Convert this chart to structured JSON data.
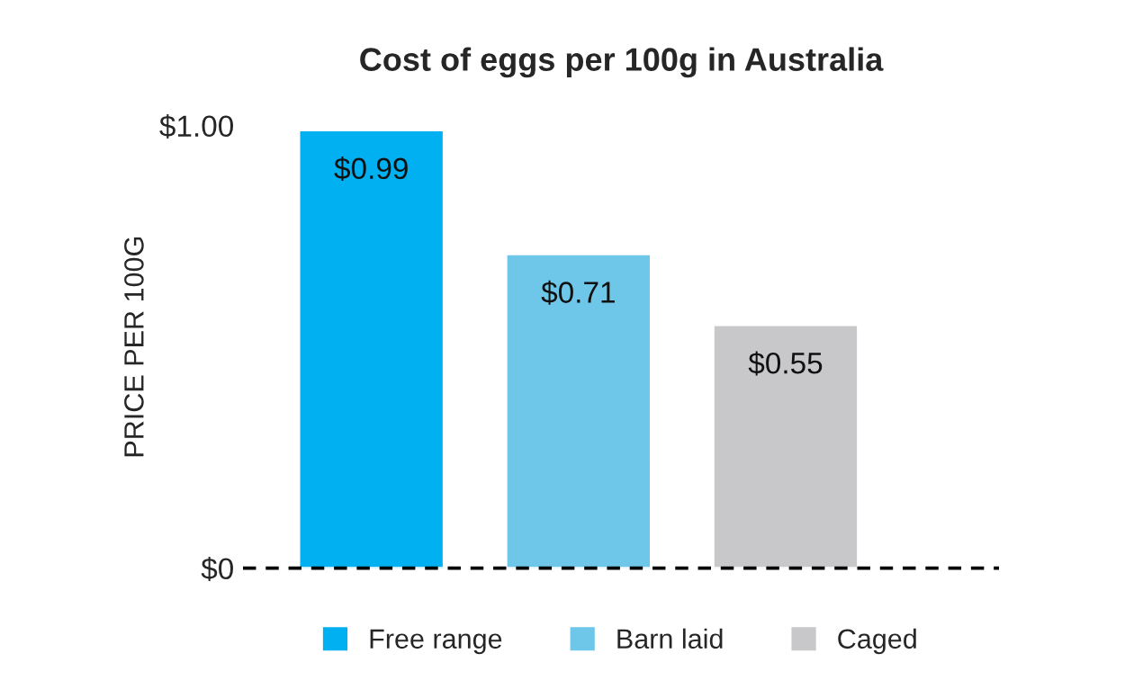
{
  "chart_data": {
    "type": "bar",
    "title": "Cost of eggs per 100g in Australia",
    "ylabel": "PRICE PER 100G",
    "categories": [
      null,
      null,
      null
    ],
    "series": [
      {
        "name": "Free range",
        "color": "#00b0f0",
        "values": [
          0.99,
          null,
          null
        ],
        "value_labels": [
          "$0.99",
          null,
          null
        ]
      },
      {
        "name": "Barn laid",
        "color": "#6ec6e8",
        "values": [
          null,
          0.71,
          null
        ],
        "value_labels": [
          null,
          "$0.71",
          null
        ]
      },
      {
        "name": "Caged",
        "color": "#c8c8ca",
        "values": [
          null,
          null,
          0.55
        ],
        "value_labels": [
          null,
          null,
          "$0.55"
        ]
      }
    ],
    "ylim": [
      0,
      1.0
    ],
    "yticks": [
      {
        "value": 0,
        "label": "$0"
      },
      {
        "value": 1.0,
        "label": "$1.00"
      }
    ],
    "ref_lines": [
      {
        "axis": "y",
        "value": 0,
        "color": "#000000",
        "line_style": "dashed"
      }
    ],
    "grid": false,
    "legend": "bottom"
  }
}
